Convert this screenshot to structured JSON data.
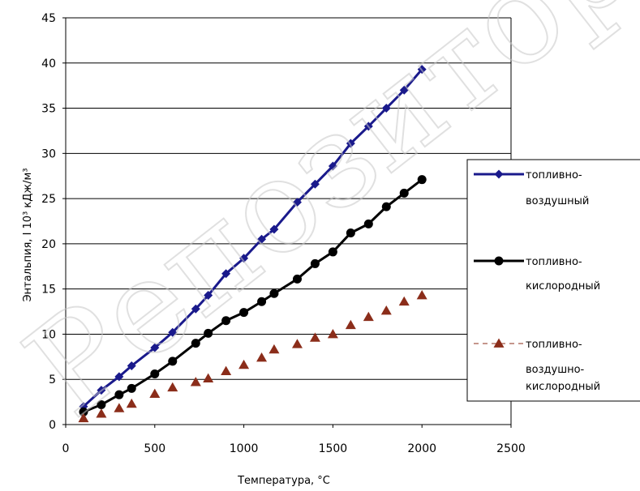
{
  "chart_data": {
    "type": "line",
    "xlabel": "Температура, °С",
    "ylabel": "Энтальпия,  I   10³ кДж/м³",
    "xlim": [
      0,
      2500
    ],
    "ylim": [
      0,
      45
    ],
    "xticks": [
      0,
      500,
      1000,
      1500,
      2000,
      2500
    ],
    "yticks": [
      0,
      5,
      10,
      15,
      20,
      25,
      30,
      35,
      40,
      45
    ],
    "grid": "horizontal",
    "legend_position": "right",
    "series": [
      {
        "name": "топливно-воздушный",
        "legend_lines": [
          "топливно-",
          "воздушный"
        ],
        "color": "#1a1a8c",
        "marker": "diamond",
        "line": "solid",
        "x": [
          100,
          200,
          300,
          370,
          500,
          600,
          730,
          800,
          900,
          1000,
          1100,
          1170,
          1300,
          1400,
          1500,
          1600,
          1700,
          1800,
          1900,
          2000
        ],
        "y": [
          2.0,
          3.8,
          5.3,
          6.5,
          8.5,
          10.2,
          12.8,
          14.3,
          16.7,
          18.4,
          20.5,
          21.6,
          24.6,
          26.6,
          28.6,
          31.1,
          33.0,
          35.0,
          37.0,
          39.3
        ]
      },
      {
        "name": "топливно-кислородный",
        "legend_lines": [
          "топливно-",
          "кислородный"
        ],
        "color": "#000000",
        "marker": "circle",
        "line": "solid",
        "x": [
          100,
          200,
          300,
          370,
          500,
          600,
          730,
          800,
          900,
          1000,
          1100,
          1170,
          1300,
          1400,
          1500,
          1600,
          1700,
          1800,
          1900,
          2000
        ],
        "y": [
          1.4,
          2.2,
          3.3,
          4.0,
          5.6,
          7.0,
          9.0,
          10.1,
          11.5,
          12.4,
          13.6,
          14.5,
          16.1,
          17.8,
          19.1,
          21.2,
          22.2,
          24.1,
          25.6,
          27.1
        ]
      },
      {
        "name": "топливно-воздушно-кислородный",
        "legend_lines": [
          "топливно-",
          "воздушно-",
          "кислородный"
        ],
        "color": "#8b2d1a",
        "marker": "triangle",
        "line": "none",
        "x": [
          100,
          200,
          300,
          370,
          500,
          600,
          730,
          800,
          900,
          1000,
          1100,
          1170,
          1300,
          1400,
          1500,
          1600,
          1700,
          1800,
          1900,
          2000
        ],
        "y": [
          0.7,
          1.2,
          1.8,
          2.3,
          3.4,
          4.1,
          4.7,
          5.1,
          5.9,
          6.6,
          7.4,
          8.3,
          8.9,
          9.6,
          10.0,
          11.0,
          11.9,
          12.6,
          13.6,
          14.3
        ]
      }
    ]
  },
  "watermark": {
    "text": "Репозиторий",
    "color": "#c8c8c8"
  }
}
